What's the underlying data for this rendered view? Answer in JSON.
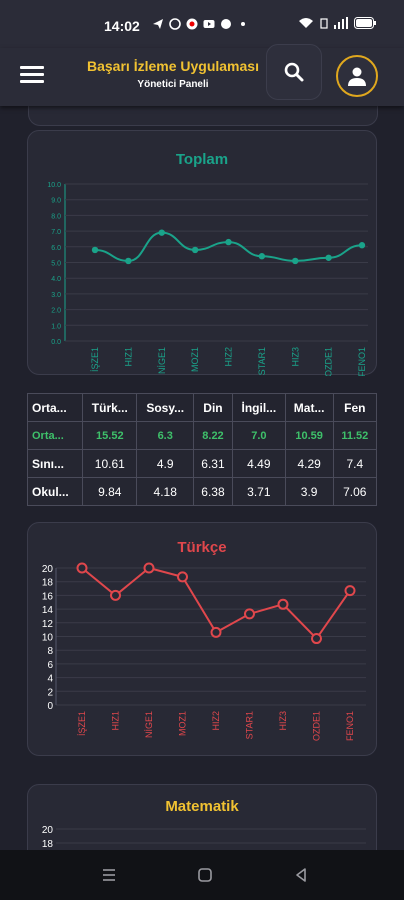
{
  "status": {
    "time": "14:02",
    "battery": ""
  },
  "app": {
    "title": "Başarı İzleme Uygulaması",
    "subtitle": "Yönetici Paneli"
  },
  "colors": {
    "toplam": "#1aa38a",
    "turkce": "#e0474c",
    "matematik": "#f1c232"
  },
  "toplam_chart": {
    "title": "Toplam",
    "chart_data": {
      "type": "line",
      "title": "Toplam",
      "categories": [
        "İŞZE1",
        "HIZ1",
        "NİGE1",
        "MOZ1",
        "HIZ2",
        "STAR1",
        "HIZ3",
        "OZDE1",
        "FENO1"
      ],
      "y_ticks": [
        "0.0",
        "1.0",
        "2.0",
        "3.0",
        "4.0",
        "5.0",
        "6.0",
        "7.0",
        "8.0",
        "9.0",
        "10.0"
      ],
      "values": [
        5.8,
        5.1,
        6.9,
        5.8,
        6.3,
        5.4,
        5.1,
        5.3,
        6.1
      ],
      "ylim": [
        0,
        10
      ]
    }
  },
  "average_table": {
    "headers": [
      "Orta...",
      "Türk...",
      "Sosy...",
      "Din",
      "İngil...",
      "Mat...",
      "Fen"
    ],
    "rows": [
      {
        "label": "Orta...",
        "values": [
          "15.52",
          "6.3",
          "8.22",
          "7.0",
          "10.59",
          "11.52"
        ]
      },
      {
        "label": "Sını...",
        "values": [
          "10.61",
          "4.9",
          "6.31",
          "4.49",
          "4.29",
          "7.4"
        ]
      },
      {
        "label": "Okul...",
        "values": [
          "9.84",
          "4.18",
          "6.38",
          "3.71",
          "3.9",
          "7.06"
        ]
      }
    ]
  },
  "turkce_chart": {
    "title": "Türkçe",
    "chart_data": {
      "type": "line",
      "title": "Türkçe",
      "categories": [
        "İŞZE1",
        "HIZ1",
        "NİGE1",
        "MOZ1",
        "HIZ2",
        "STAR1",
        "HIZ3",
        "OZDE1",
        "FENO1"
      ],
      "y_ticks": [
        "0",
        "2",
        "4",
        "6",
        "8",
        "10",
        "12",
        "14",
        "16",
        "18",
        "20"
      ],
      "values": [
        20,
        16,
        20,
        18.7,
        10.6,
        13.3,
        14.7,
        9.7,
        16.7
      ],
      "ylim": [
        0,
        20
      ]
    }
  },
  "matematik_chart": {
    "title": "Matematik",
    "chart_data": {
      "type": "line",
      "title": "Matematik",
      "y_ticks": [
        "20",
        "18"
      ],
      "ylim": [
        0,
        20
      ]
    }
  }
}
